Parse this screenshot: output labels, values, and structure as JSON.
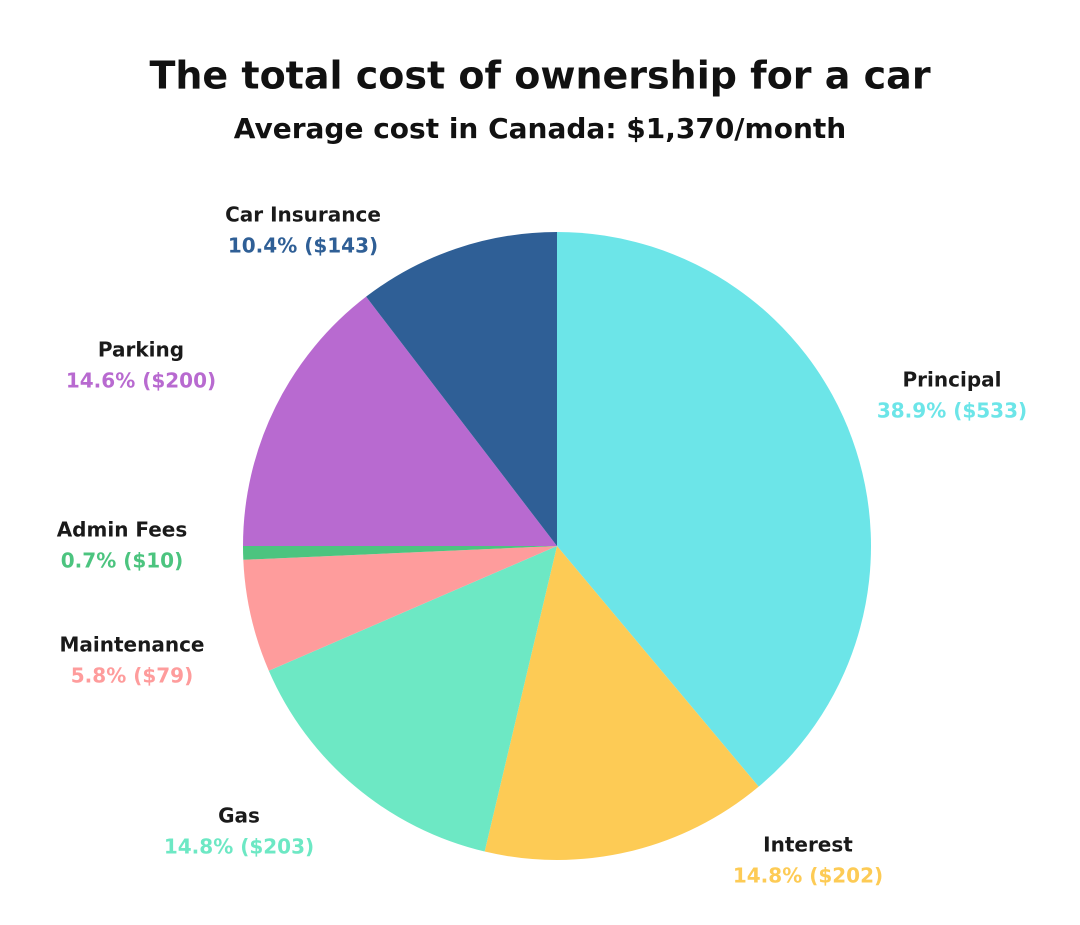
{
  "chart_data": {
    "type": "pie",
    "title": "The total cost of ownership for a car",
    "subtitle": "Average cost in Canada: $1,370/month",
    "categories": [
      "Principal",
      "Interest",
      "Gas",
      "Maintenance",
      "Admin Fees",
      "Parking",
      "Car Insurance"
    ],
    "values": [
      38.9,
      14.8,
      14.8,
      5.8,
      0.7,
      14.6,
      10.4
    ],
    "value_labels": [
      "38.9% ($533)",
      "14.8% ($202)",
      "14.8% ($203)",
      "5.8% ($79)",
      "0.7% ($10)",
      "14.6% ($200)",
      "10.4% ($143)"
    ],
    "colors": [
      "#6ce5e8",
      "#fdcb55",
      "#6de8c4",
      "#fe9c9c",
      "#4cc47f",
      "#b86ad0",
      "#2f5f96"
    ]
  }
}
